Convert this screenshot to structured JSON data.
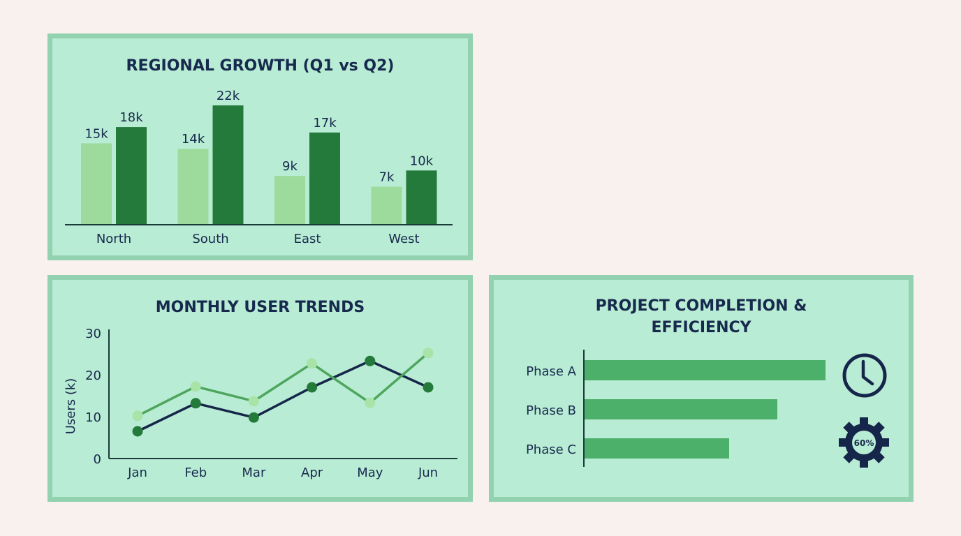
{
  "colors": {
    "background": "#f8f1ed",
    "panel": "#b9ecd4",
    "panel_border": "#92d2b0",
    "q1": "#9ddb9d",
    "q2": "#237a3a",
    "line_dark": "#16264a",
    "dot_dark": "#237a3a",
    "line_light": "#4ea65e",
    "dot_light": "#a8e3a8",
    "hbar": "#4caf6a",
    "icon": "#16264a"
  },
  "chart_data": [
    {
      "type": "bar",
      "title": "REGIONAL GROWTH (Q1 vs Q2)",
      "categories": [
        "North",
        "South",
        "East",
        "West"
      ],
      "series": [
        {
          "values": [
            15,
            14,
            9,
            7
          ],
          "labels": [
            "15k",
            "14k",
            "9k",
            "7k"
          ]
        },
        {
          "values": [
            18,
            22,
            17,
            10
          ],
          "labels": [
            "18k",
            "22k",
            "17k",
            "10k"
          ]
        }
      ],
      "xlabel": "",
      "ylabel": "",
      "grid": false
    },
    {
      "type": "line",
      "title": "MONTHLY USER TRENDS",
      "categories": [
        "Jan",
        "Feb",
        "Mar",
        "Apr",
        "May",
        "Jun"
      ],
      "series": [
        {
          "values": [
            6.5,
            13.2,
            9.8,
            17,
            23.3,
            17
          ]
        },
        {
          "values": [
            10.2,
            17.2,
            13.7,
            22.7,
            13.3,
            25.2
          ]
        }
      ],
      "ylabel": "Users (k)",
      "xlabel": "",
      "ylim": [
        0,
        30
      ],
      "yticks": [
        0,
        10,
        20,
        30
      ],
      "grid": false
    },
    {
      "type": "bar",
      "orientation": "horizontal",
      "title": "PROJECT COMPLETION & EFFICIENCY",
      "title_lines": [
        "PROJECT COMPLETION &",
        "EFFICIENCY"
      ],
      "categories": [
        "Phase A",
        "Phase B",
        "Phase C"
      ],
      "values": [
        100,
        80,
        60
      ],
      "icons": [
        {
          "name": "clock-icon"
        },
        {
          "name": "gear-icon",
          "label": "60%"
        }
      ]
    }
  ]
}
